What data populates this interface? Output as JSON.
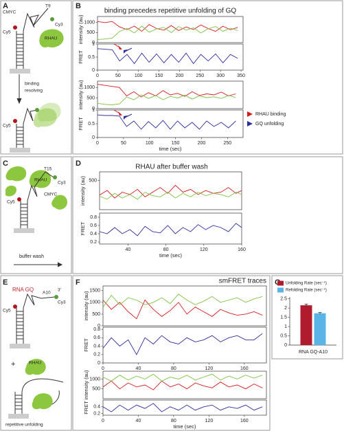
{
  "panel_labels": [
    "A",
    "B",
    "C",
    "D",
    "E",
    "F",
    "G"
  ],
  "diagram_A": [
    "CMYC",
    "T9",
    "Cy3",
    "Cy5",
    "RHAU",
    "binding",
    "resolving",
    "Cy5"
  ],
  "diagram_C": [
    "T15",
    "Cy3",
    "RHAU",
    "CMYC",
    "Cy5",
    "buffer wash"
  ],
  "diagram_E": [
    "RNA GQ",
    "A10",
    "3'",
    "Cy3",
    "Cy5",
    "+",
    "RHAU",
    "repetitive unfolding"
  ],
  "chart_data": [
    {
      "type": "line",
      "title": "binding precedes repetitive unfolding of GQ",
      "ylabel": "intensity (au)",
      "x": [
        0,
        18,
        36,
        54,
        72,
        90,
        108,
        126,
        144,
        162,
        180,
        198,
        216,
        234,
        252,
        270,
        288,
        306,
        324,
        342
      ],
      "xlim": [
        0,
        355
      ],
      "ylim": [
        0,
        1300
      ],
      "yticks": [
        0,
        500,
        1000
      ],
      "series": [
        {
          "color": "#d7191c",
          "values": [
            1050,
            1000,
            1050,
            780,
            650,
            820,
            560,
            900,
            700,
            620,
            850,
            600,
            780,
            650,
            880,
            700,
            560,
            820,
            640,
            760
          ]
        },
        {
          "color": "#7dc242",
          "values": [
            150,
            180,
            220,
            560,
            700,
            480,
            820,
            520,
            680,
            760,
            500,
            800,
            620,
            740,
            480,
            690,
            800,
            560,
            720,
            600
          ]
        }
      ]
    },
    {
      "type": "line",
      "ylabel": "FRET",
      "x": [
        0,
        18,
        36,
        54,
        72,
        90,
        108,
        126,
        144,
        162,
        180,
        198,
        216,
        234,
        252,
        270,
        288,
        306,
        324,
        342
      ],
      "xlim": [
        0,
        355
      ],
      "xticks": [
        0,
        50,
        100,
        150,
        200,
        250,
        300,
        350
      ],
      "ylim": [
        0,
        1
      ],
      "yticks": [
        0,
        0.5,
        1
      ],
      "series": [
        {
          "color": "#2c2c9c",
          "values": [
            0.82,
            0.8,
            0.78,
            0.35,
            0.6,
            0.25,
            0.65,
            0.3,
            0.62,
            0.28,
            0.6,
            0.3,
            0.65,
            0.25,
            0.6,
            0.35,
            0.62,
            0.28,
            0.6,
            0.45
          ]
        }
      ]
    },
    {
      "type": "line",
      "ylabel": "intensity (au)",
      "x": [
        0,
        14,
        28,
        42,
        56,
        70,
        84,
        98,
        112,
        126,
        140,
        154,
        168,
        182,
        196,
        210,
        224,
        238,
        252,
        266
      ],
      "xlim": [
        0,
        280
      ],
      "ylim": [
        0,
        1300
      ],
      "yticks": [
        0,
        500,
        1000
      ],
      "series": [
        {
          "color": "#d7191c",
          "values": [
            1150,
            1100,
            1050,
            1000,
            600,
            800,
            550,
            750,
            600,
            850,
            650,
            720,
            580,
            800,
            620,
            700,
            650,
            780,
            600,
            700
          ]
        },
        {
          "color": "#7dc242",
          "values": [
            250,
            200,
            180,
            220,
            550,
            420,
            650,
            480,
            620,
            420,
            580,
            500,
            640,
            450,
            600,
            520,
            560,
            480,
            620,
            520
          ]
        }
      ]
    },
    {
      "type": "line",
      "ylabel": "FRET",
      "xlabel": "time (sec)",
      "annotations": [
        "RHAU binding",
        "GQ unfolding"
      ],
      "x": [
        0,
        14,
        28,
        42,
        56,
        70,
        84,
        98,
        112,
        126,
        140,
        154,
        168,
        182,
        196,
        210,
        224,
        238,
        252,
        266
      ],
      "xlim": [
        0,
        280
      ],
      "xticks": [
        0,
        50,
        100,
        150,
        200,
        250
      ],
      "ylim": [
        0,
        1
      ],
      "yticks": [
        0,
        0.5,
        1
      ],
      "series": [
        {
          "color": "#2c2c9c",
          "values": [
            0.82,
            0.8,
            0.8,
            0.78,
            0.4,
            0.6,
            0.3,
            0.58,
            0.35,
            0.62,
            0.3,
            0.6,
            0.35,
            0.55,
            0.3,
            0.6,
            0.4,
            0.55,
            0.35,
            0.6
          ]
        }
      ]
    },
    {
      "type": "line",
      "title": "RHAU after buffer wash",
      "ylabel": "intensity (au)",
      "x": [
        10,
        18,
        26,
        34,
        42,
        50,
        58,
        66,
        74,
        82,
        90,
        98,
        106,
        114,
        122,
        130,
        138,
        146,
        154,
        160
      ],
      "xlim": [
        10,
        160
      ],
      "ylim": [
        0,
        650
      ],
      "yticks": [
        500
      ],
      "series": [
        {
          "color": "#d7191c",
          "values": [
            250,
            330,
            200,
            300,
            260,
            350,
            220,
            300,
            380,
            280,
            420,
            300,
            350,
            260,
            330,
            280,
            300,
            380,
            280,
            330
          ]
        },
        {
          "color": "#7dc242",
          "values": [
            230,
            180,
            280,
            200,
            260,
            180,
            300,
            240,
            220,
            300,
            200,
            280,
            220,
            300,
            240,
            280,
            260,
            220,
            300,
            260
          ]
        }
      ]
    },
    {
      "type": "line",
      "ylabel": "FRET",
      "xlabel": "time (sec)",
      "x": [
        10,
        18,
        26,
        34,
        42,
        50,
        58,
        66,
        74,
        82,
        90,
        98,
        106,
        114,
        122,
        130,
        138,
        146,
        154,
        160
      ],
      "xlim": [
        10,
        160
      ],
      "xticks": [
        40,
        80,
        120,
        160
      ],
      "ylim": [
        0.15,
        0.9
      ],
      "yticks": [
        0.2,
        0.4,
        0.6,
        0.8
      ],
      "series": [
        {
          "color": "#2c2c9c",
          "values": [
            0.45,
            0.4,
            0.55,
            0.4,
            0.5,
            0.35,
            0.58,
            0.45,
            0.42,
            0.6,
            0.4,
            0.55,
            0.45,
            0.62,
            0.5,
            0.6,
            0.55,
            0.45,
            0.65,
            0.55
          ]
        }
      ]
    },
    {
      "type": "line",
      "title": "smFRET traces",
      "ylabel": "intensity (au)",
      "x": [
        0,
        9.5,
        19,
        28.5,
        38,
        47.5,
        57,
        66.5,
        76,
        85.5,
        95,
        104.5,
        114,
        123.5,
        133,
        142.5,
        152,
        161.5,
        171,
        180.5
      ],
      "xlim": [
        0,
        185
      ],
      "ylim": [
        0,
        1700
      ],
      "yticks": [
        0,
        500,
        1000,
        1500
      ],
      "series": [
        {
          "color": "#d7191c",
          "values": [
            1100,
            700,
            1000,
            600,
            300,
            1100,
            700,
            400,
            650,
            1000,
            500,
            800,
            600,
            400,
            700,
            550,
            450,
            500,
            600,
            450
          ]
        },
        {
          "color": "#7dc242",
          "values": [
            800,
            1300,
            900,
            1200,
            1100,
            900,
            1000,
            1200,
            950,
            1350,
            1100,
            900,
            1050,
            1250,
            1000,
            1100,
            1200,
            1000,
            1150,
            1250
          ]
        }
      ]
    },
    {
      "type": "line",
      "ylabel": "FRET",
      "x": [
        0,
        9.5,
        19,
        28.5,
        38,
        47.5,
        57,
        66.5,
        76,
        85.5,
        95,
        104.5,
        114,
        123.5,
        133,
        142.5,
        152,
        161.5,
        171,
        180.5
      ],
      "xlim": [
        0,
        185
      ],
      "xticks": [
        0,
        40,
        80,
        120,
        160
      ],
      "ylim": [
        0,
        0.85
      ],
      "yticks": [
        0,
        0.2,
        0.4,
        0.6,
        0.8
      ],
      "series": [
        {
          "color": "#2c2c9c",
          "values": [
            0.35,
            0.6,
            0.4,
            0.55,
            0.2,
            0.6,
            0.45,
            0.65,
            0.5,
            0.45,
            0.6,
            0.5,
            0.55,
            0.65,
            0.5,
            0.6,
            0.65,
            0.55,
            0.55,
            0.7
          ]
        }
      ]
    },
    {
      "type": "line",
      "ylabel": "intensity (au)",
      "x": [
        0,
        9.5,
        19,
        28.5,
        38,
        47.5,
        57,
        66.5,
        76,
        85.5,
        95,
        104.5,
        114,
        123.5,
        133,
        142.5,
        152,
        161.5,
        171,
        180.5
      ],
      "xlim": [
        0,
        185
      ],
      "ylim": [
        0,
        1400
      ],
      "yticks": [
        500,
        1000
      ],
      "series": [
        {
          "color": "#d7191c",
          "values": [
            600,
            900,
            500,
            800,
            600,
            700,
            450,
            900,
            600,
            750,
            500,
            800,
            650,
            550,
            850,
            600,
            700,
            500,
            750,
            550
          ]
        },
        {
          "color": "#7dc242",
          "values": [
            1100,
            900,
            1200,
            950,
            1150,
            1000,
            1250,
            900,
            1100,
            1000,
            1200,
            950,
            1100,
            1250,
            950,
            1150,
            1000,
            1200,
            1050,
            1200
          ]
        }
      ]
    },
    {
      "type": "line",
      "ylabel": "FRET",
      "xlabel": "time (sec)",
      "x": [
        0,
        9.5,
        19,
        28.5,
        38,
        47.5,
        57,
        66.5,
        76,
        85.5,
        95,
        104.5,
        114,
        123.5,
        133,
        142.5,
        152,
        161.5,
        171,
        180.5
      ],
      "xlim": [
        0,
        185
      ],
      "xticks": [
        0,
        40,
        80,
        120,
        160
      ],
      "ylim": [
        0.15,
        0.6
      ],
      "yticks": [
        0.2,
        0.4
      ],
      "series": [
        {
          "color": "#2c2c9c",
          "values": [
            0.4,
            0.25,
            0.45,
            0.3,
            0.45,
            0.35,
            0.5,
            0.25,
            0.4,
            0.3,
            0.45,
            0.3,
            0.4,
            0.45,
            0.3,
            0.4,
            0.35,
            0.45,
            0.3,
            0.4
          ]
        }
      ]
    },
    {
      "type": "bar",
      "categories": [
        "RNA GQ-A10"
      ],
      "ylim": [
        0,
        2.6
      ],
      "yticks": [
        0,
        0.5,
        1,
        1.5,
        2,
        2.5
      ],
      "series": [
        {
          "name": "Unfolding Rate (sec⁻¹)",
          "color": "#b01c2e",
          "values": [
            2.15
          ],
          "errors": [
            0.06
          ]
        },
        {
          "name": "Refolding Rate (sec⁻¹)",
          "color": "#5ab4e5",
          "values": [
            1.72
          ],
          "errors": [
            0.04
          ]
        }
      ]
    }
  ]
}
